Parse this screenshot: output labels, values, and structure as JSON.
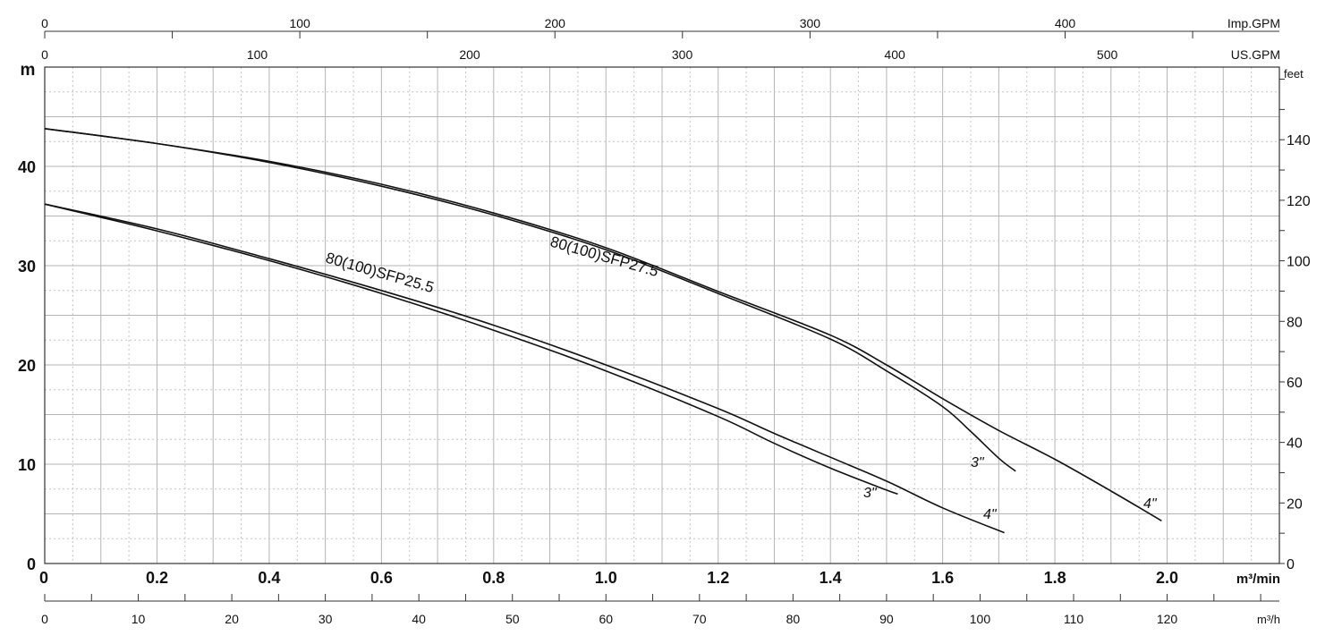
{
  "chart_data": {
    "type": "line",
    "axes": {
      "bottom": {
        "label": "m³/min",
        "range": [
          0,
          2.2
        ],
        "ticks": [
          "0",
          "0.2",
          "0.4",
          "0.6",
          "0.8",
          "1.0",
          "1.2",
          "1.4",
          "1.6",
          "1.8",
          "2.0"
        ]
      },
      "bottom_secondary": {
        "label": "m³/h",
        "range": [
          0,
          132
        ],
        "ticks": [
          "0",
          "10",
          "20",
          "30",
          "40",
          "50",
          "60",
          "70",
          "80",
          "90",
          "100",
          "110",
          "120"
        ]
      },
      "top": {
        "label": "Imp.GPM",
        "range": [
          0,
          484
        ],
        "ticks": [
          "0",
          "100",
          "200",
          "300",
          "400"
        ]
      },
      "top_secondary": {
        "label": "US.GPM",
        "range": [
          0,
          581
        ],
        "ticks": [
          "0",
          "100",
          "200",
          "300",
          "400",
          "500"
        ]
      },
      "left": {
        "label": "m",
        "range": [
          0,
          50
        ],
        "ticks": [
          "0",
          "10",
          "20",
          "30",
          "40"
        ]
      },
      "right": {
        "label": "feet",
        "range": [
          0,
          164
        ],
        "ticks": [
          "0",
          "20",
          "40",
          "60",
          "80",
          "100",
          "120",
          "140"
        ]
      }
    },
    "grid": true,
    "series": [
      {
        "name": "80(100)SFP27.5",
        "label": "80(100)SFP27.5",
        "variants": [
          {
            "name": "3\"",
            "x": [
              0,
              0.2,
              0.4,
              0.6,
              0.8,
              1.0,
              1.2,
              1.4,
              1.5,
              1.6,
              1.65,
              1.7,
              1.73
            ],
            "y": [
              43.8,
              42.3,
              40.4,
              38.0,
              35.1,
              31.6,
              27.2,
              22.6,
              19.4,
              15.8,
              13.3,
              10.6,
              9.3
            ]
          },
          {
            "name": "4\"",
            "x": [
              0,
              0.2,
              0.4,
              0.6,
              0.8,
              1.0,
              1.2,
              1.4,
              1.5,
              1.6,
              1.7,
              1.8,
              1.9,
              1.99
            ],
            "y": [
              43.8,
              42.3,
              40.5,
              38.2,
              35.3,
              31.8,
              27.4,
              23.0,
              20.0,
              16.6,
              13.4,
              10.5,
              7.3,
              4.3
            ]
          }
        ]
      },
      {
        "name": "80(100)SFP25.5",
        "label": "80(100)SFP25.5",
        "variants": [
          {
            "name": "3\"",
            "x": [
              0,
              0.2,
              0.4,
              0.6,
              0.8,
              1.0,
              1.2,
              1.3,
              1.4,
              1.5,
              1.52
            ],
            "y": [
              36.2,
              33.5,
              30.5,
              27.2,
              23.5,
              19.4,
              14.8,
              12.1,
              9.6,
              7.4,
              7.0
            ]
          },
          {
            "name": "4\"",
            "x": [
              0,
              0.2,
              0.4,
              0.6,
              0.8,
              1.0,
              1.2,
              1.3,
              1.4,
              1.5,
              1.6,
              1.71
            ],
            "y": [
              36.2,
              33.7,
              30.7,
              27.5,
              24.0,
              20.0,
              15.6,
              13.1,
              10.7,
              8.3,
              5.6,
              3.1
            ]
          }
        ]
      }
    ]
  },
  "labels": {
    "curve_27": "80(100)SFP27.5",
    "curve_25": "80(100)SFP25.5",
    "size_3": "3\"",
    "size_4": "4\""
  }
}
